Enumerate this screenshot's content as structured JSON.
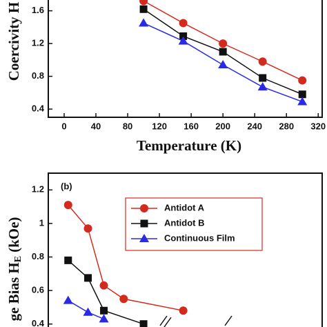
{
  "chart_data": [
    {
      "type": "line",
      "ylabel": "Coercivity H",
      "xlabel": "Temperature (K)",
      "xlim": [
        -20,
        325
      ],
      "ylim": [
        0.3,
        1.9
      ],
      "xticks": [
        0,
        40,
        80,
        120,
        160,
        200,
        240,
        280,
        320
      ],
      "yticks": [
        0.4,
        0.8,
        1.2,
        1.6
      ],
      "series": [
        {
          "name": "Antidot A",
          "color": "#d42a1e",
          "marker": "circle",
          "x": [
            100,
            150,
            200,
            250,
            300
          ],
          "values": [
            1.72,
            1.45,
            1.2,
            0.98,
            0.75
          ]
        },
        {
          "name": "Antidot B",
          "color": "#111111",
          "marker": "square",
          "x": [
            100,
            150,
            200,
            250,
            300
          ],
          "values": [
            1.62,
            1.29,
            1.1,
            0.78,
            0.58
          ]
        },
        {
          "name": "Continuous Film",
          "color": "#2a2ae6",
          "marker": "triangle",
          "x": [
            100,
            150,
            200,
            250,
            300
          ],
          "values": [
            1.45,
            1.23,
            0.94,
            0.67,
            0.49
          ]
        }
      ]
    },
    {
      "type": "line",
      "panel_label": "(b)",
      "ylabel": "ge Bias H",
      "ylabel_sub": "E",
      "ylabel_unit": "(kOe)",
      "xlim": [
        -20,
        325
      ],
      "ylim": [
        0.3,
        1.3
      ],
      "yticks": [
        0.4,
        0.6,
        0.8,
        1,
        1.2
      ],
      "legend": "upper center",
      "series": [
        {
          "name": "Antidot A",
          "color": "#d42a1e",
          "marker": "circle",
          "x": [
            5,
            30,
            50,
            75,
            150
          ],
          "values": [
            1.11,
            0.97,
            0.63,
            0.55,
            0.48
          ]
        },
        {
          "name": "Antidot B",
          "color": "#111111",
          "marker": "square",
          "x": [
            5,
            30,
            50,
            100
          ],
          "values": [
            0.78,
            0.675,
            0.48,
            0.4
          ]
        },
        {
          "name": "Continuous Film",
          "color": "#2a2ae6",
          "marker": "triangle",
          "x": [
            5,
            30,
            50
          ],
          "values": [
            0.54,
            0.47,
            0.43
          ]
        }
      ]
    }
  ]
}
